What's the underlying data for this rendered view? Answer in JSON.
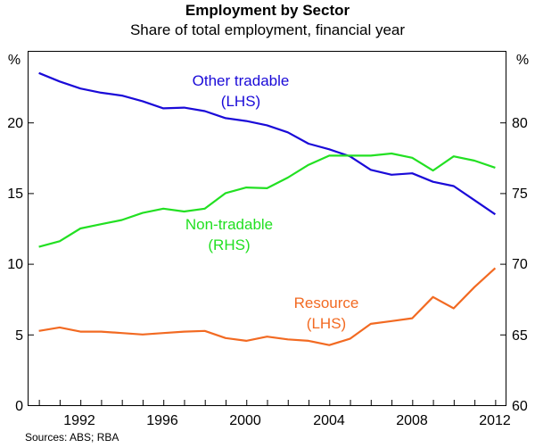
{
  "title": "Employment by Sector",
  "subtitle": "Share of total employment, financial year",
  "source": "Sources: ABS; RBA",
  "chart_data": {
    "type": "line",
    "x": [
      1990,
      1991,
      1992,
      1993,
      1994,
      1995,
      1996,
      1997,
      1998,
      1999,
      2000,
      2001,
      2002,
      2003,
      2004,
      2005,
      2006,
      2007,
      2008,
      2009,
      2010,
      2011,
      2012
    ],
    "xticks": [
      1992,
      1996,
      2000,
      2004,
      2008,
      2012
    ],
    "xtick_labels": [
      "1992",
      "1996",
      "2000",
      "2004",
      "2008",
      "2012"
    ],
    "xlim": [
      1989.5,
      2012.5
    ],
    "left_axis": {
      "unit": "%",
      "ylim": [
        0,
        25
      ],
      "ticks": [
        0,
        5,
        10,
        15,
        20
      ],
      "tick_labels": [
        "0",
        "5",
        "10",
        "15",
        "20"
      ]
    },
    "right_axis": {
      "unit": "%",
      "ylim": [
        60,
        85
      ],
      "ticks": [
        60,
        65,
        70,
        75,
        80
      ],
      "tick_labels": [
        "60",
        "65",
        "70",
        "75",
        "80"
      ]
    },
    "series": [
      {
        "name": "Other tradable",
        "axis_label": "(LHS)",
        "axis": "left",
        "color": "#1a0ad8",
        "values": [
          23.5,
          22.9,
          22.4,
          22.1,
          21.9,
          21.5,
          21.0,
          21.05,
          20.8,
          20.3,
          20.1,
          19.8,
          19.3,
          18.5,
          18.1,
          17.6,
          16.65,
          16.3,
          16.4,
          15.8,
          15.5,
          14.5,
          13.5
        ]
      },
      {
        "name": "Non-tradable",
        "axis_label": "(RHS)",
        "axis": "right",
        "color": "#22e022",
        "values": [
          71.2,
          71.6,
          72.5,
          72.8,
          73.1,
          73.6,
          73.9,
          73.7,
          73.9,
          75.0,
          75.4,
          75.35,
          76.1,
          77.0,
          77.65,
          77.65,
          77.65,
          77.8,
          77.5,
          76.6,
          77.6,
          77.3,
          76.8
        ]
      },
      {
        "name": "Resource",
        "axis_label": "(LHS)",
        "axis": "left",
        "color": "#f26a22",
        "values": [
          5.25,
          5.5,
          5.2,
          5.2,
          5.1,
          5.0,
          5.1,
          5.2,
          5.25,
          4.75,
          4.55,
          4.85,
          4.65,
          4.55,
          4.25,
          4.7,
          5.75,
          5.95,
          6.15,
          7.65,
          6.85,
          8.35,
          9.7
        ]
      }
    ]
  }
}
